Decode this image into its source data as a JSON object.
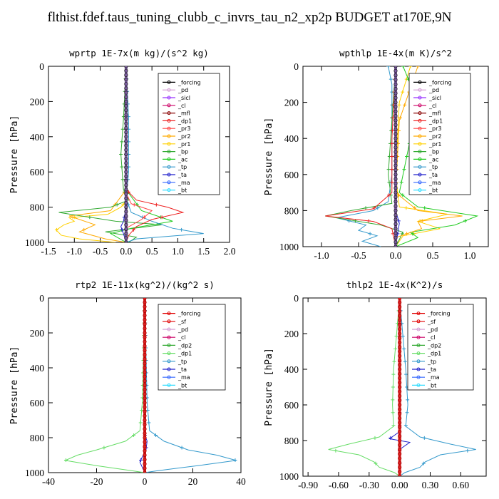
{
  "figure_title": "flthist.fdef.taus_tuning_clubb_c_invrs_tau_n2_xp2p  BUDGET at170E,9N",
  "colors": {
    "forcing": "#000000",
    "forcing_red": "#e00000",
    "pd": "#d49cd4",
    "sicl": "#9933ff",
    "cl": "#cc0066",
    "mfl": "#880000",
    "dp1": "#ee2222",
    "pr3": "#ff4444",
    "pr2": "#ffaa00",
    "pr1": "#ffd000",
    "bp": "#33aa33",
    "ac": "#22cc22",
    "tp": "#3399cc",
    "ta": "#2222cc",
    "ma": "#3366ff",
    "bt": "#33ddff",
    "sf": "#e00000",
    "dp2": "#33aa33",
    "dp1_green": "#66dd66"
  },
  "chart_data": [
    {
      "type": "line",
      "title": "wprtp  1E-7x(m kg)/(s^2 kg)",
      "ylabel": "Pressure [hPa]",
      "xlim": [
        -1.5,
        2.0
      ],
      "ylim": [
        1000,
        0
      ],
      "xticks": [
        "-1.5",
        "-1.0",
        "-0.5",
        "0.0",
        "0.5",
        "1.0",
        "1.5",
        "2.0"
      ],
      "yticks": [
        "0",
        "200",
        "400",
        "600",
        "800",
        "1000"
      ],
      "legend": [
        "_forcing",
        "_pd",
        "_sicl",
        "_cl",
        "_mfl",
        "_dp1",
        "_pr3",
        "_pr2",
        "_pr1",
        "_bp",
        "_ac",
        "_tp",
        "_ta",
        "_ma",
        "_bt"
      ],
      "series": [
        {
          "name": "_pr1",
          "color": "pr1",
          "points": [
            [
              0,
              0
            ],
            [
              0,
              400
            ],
            [
              0,
              700
            ],
            [
              0.02,
              760
            ],
            [
              -0.1,
              800
            ],
            [
              -0.35,
              840
            ],
            [
              -1.1,
              860
            ],
            [
              -1.0,
              880
            ],
            [
              -1.2,
              900
            ],
            [
              -1.35,
              930
            ],
            [
              -1.25,
              960
            ],
            [
              -0.9,
              980
            ],
            [
              -0.2,
              1000
            ]
          ]
        },
        {
          "name": "_pr2",
          "color": "pr2",
          "points": [
            [
              0,
              0
            ],
            [
              0,
              700
            ],
            [
              -0.3,
              820
            ],
            [
              -1.1,
              850
            ],
            [
              -0.6,
              900
            ],
            [
              -0.9,
              940
            ],
            [
              -0.4,
              980
            ],
            [
              0,
              1000
            ]
          ]
        },
        {
          "name": "_bp",
          "color": "bp",
          "points": [
            [
              0,
              0
            ],
            [
              -0.05,
              300
            ],
            [
              -0.1,
              500
            ],
            [
              -0.05,
              700
            ],
            [
              0.05,
              760
            ],
            [
              -0.3,
              800
            ],
            [
              -1.3,
              830
            ],
            [
              -0.2,
              880
            ],
            [
              0.7,
              900
            ],
            [
              -0.4,
              940
            ],
            [
              0.2,
              970
            ],
            [
              0.05,
              1000
            ]
          ]
        },
        {
          "name": "_ac",
          "color": "ac",
          "points": [
            [
              0,
              0
            ],
            [
              0,
              300
            ],
            [
              0,
              700
            ],
            [
              0.3,
              820
            ],
            [
              0.9,
              880
            ],
            [
              0.1,
              920
            ],
            [
              -0.3,
              950
            ],
            [
              0,
              1000
            ]
          ]
        },
        {
          "name": "_tp",
          "color": "tp",
          "points": [
            [
              0,
              0
            ],
            [
              0.05,
              300
            ],
            [
              0.05,
              600
            ],
            [
              0,
              750
            ],
            [
              0.1,
              830
            ],
            [
              0.5,
              880
            ],
            [
              0.9,
              920
            ],
            [
              1.5,
              950
            ],
            [
              0.2,
              980
            ],
            [
              0,
              1000
            ]
          ]
        },
        {
          "name": "_dp1",
          "color": "dp1",
          "points": [
            [
              0,
              0
            ],
            [
              0,
              700
            ],
            [
              0.2,
              760
            ],
            [
              0.8,
              800
            ],
            [
              1.1,
              830
            ],
            [
              0.5,
              870
            ],
            [
              0.2,
              910
            ],
            [
              0.05,
              960
            ],
            [
              0,
              1000
            ]
          ]
        },
        {
          "name": "_pr3",
          "color": "pr3",
          "points": [
            [
              0,
              0
            ],
            [
              0,
              720
            ],
            [
              0.1,
              780
            ],
            [
              0.5,
              820
            ],
            [
              0.3,
              870
            ],
            [
              0,
              920
            ],
            [
              0,
              1000
            ]
          ]
        },
        {
          "name": "_ta",
          "color": "ta",
          "points": [
            [
              0,
              0
            ],
            [
              0,
              800
            ],
            [
              -0.05,
              880
            ],
            [
              -0.1,
              910
            ],
            [
              -0.05,
              950
            ],
            [
              0,
              1000
            ]
          ]
        },
        {
          "name": "_forcing",
          "color": "forcing",
          "points": [
            [
              0,
              0
            ],
            [
              0,
              1000
            ]
          ]
        }
      ]
    },
    {
      "type": "line",
      "title": "wpthlp  1E-4x(m K)/s^2",
      "ylabel": "Pressure [hPa]",
      "xlim": [
        -1.25,
        1.25
      ],
      "ylim": [
        1000,
        0
      ],
      "xticks": [
        "-1.0",
        "-0.5",
        "0.0",
        "0.5",
        "1.0"
      ],
      "yticks": [
        "0",
        "200",
        "400",
        "600",
        "800",
        "1000"
      ],
      "legend": [
        "_forcing",
        "_pd",
        "_sicl",
        "_cl",
        "_mfl",
        "_dp1",
        "_pr3",
        "_pr2",
        "_pr1",
        "_bp",
        "_ac",
        "_tp",
        "_ta",
        "_ma",
        "_bt"
      ],
      "series": [
        {
          "name": "_tp",
          "color": "tp",
          "points": [
            [
              -0.1,
              0
            ],
            [
              -0.05,
              100
            ],
            [
              -0.05,
              300
            ],
            [
              -0.05,
              600
            ],
            [
              -0.1,
              750
            ],
            [
              -0.3,
              800
            ],
            [
              -0.8,
              840
            ],
            [
              -0.4,
              880
            ],
            [
              -0.5,
              910
            ],
            [
              -0.25,
              940
            ],
            [
              -0.45,
              970
            ],
            [
              -0.2,
              1000
            ]
          ]
        },
        {
          "name": "_pr1",
          "color": "pr1",
          "points": [
            [
              0.2,
              0
            ],
            [
              0.05,
              200
            ],
            [
              0,
              600
            ],
            [
              0.05,
              780
            ],
            [
              0.7,
              820
            ],
            [
              0.3,
              860
            ],
            [
              0.6,
              900
            ],
            [
              0.1,
              940
            ],
            [
              0,
              1000
            ]
          ]
        },
        {
          "name": "_ac",
          "color": "ac",
          "points": [
            [
              0.1,
              0
            ],
            [
              0.2,
              100
            ],
            [
              0.3,
              200
            ],
            [
              0.25,
              300
            ],
            [
              0.15,
              500
            ],
            [
              0.05,
              700
            ],
            [
              0.3,
              780
            ],
            [
              1.1,
              830
            ],
            [
              0.8,
              880
            ],
            [
              0.2,
              920
            ],
            [
              0.3,
              950
            ],
            [
              0,
              1000
            ]
          ]
        },
        {
          "name": "_bp",
          "color": "bp",
          "points": [
            [
              0,
              0
            ],
            [
              -0.05,
              300
            ],
            [
              -0.1,
              600
            ],
            [
              -0.05,
              760
            ],
            [
              -0.6,
              800
            ],
            [
              -0.95,
              830
            ],
            [
              -0.2,
              880
            ],
            [
              0.1,
              920
            ],
            [
              0.05,
              960
            ],
            [
              0,
              1000
            ]
          ]
        },
        {
          "name": "_dp1",
          "color": "dp1",
          "points": [
            [
              0,
              0
            ],
            [
              -0.05,
              400
            ],
            [
              -0.05,
              700
            ],
            [
              -0.3,
              790
            ],
            [
              -0.95,
              830
            ],
            [
              -0.3,
              860
            ],
            [
              -0.05,
              900
            ],
            [
              0,
              1000
            ]
          ]
        },
        {
          "name": "_pr2",
          "color": "pr2",
          "points": [
            [
              0.3,
              0
            ],
            [
              0.05,
              300
            ],
            [
              0,
              700
            ],
            [
              0.3,
              800
            ],
            [
              0.9,
              830
            ],
            [
              0.3,
              860
            ],
            [
              0.35,
              900
            ],
            [
              0,
              950
            ],
            [
              0,
              1000
            ]
          ]
        },
        {
          "name": "_ta",
          "color": "ta",
          "points": [
            [
              0,
              0
            ],
            [
              0,
              800
            ],
            [
              0.05,
              870
            ],
            [
              0,
              1000
            ]
          ]
        },
        {
          "name": "_pd",
          "color": "pd",
          "points": [
            [
              0,
              0
            ],
            [
              0,
              1000
            ]
          ]
        }
      ]
    },
    {
      "type": "line",
      "title": "rtp2  1E-11x(kg^2)/(kg^2 s)",
      "ylabel": "Pressure [hPa]",
      "xlim": [
        -40,
        40
      ],
      "ylim": [
        1000,
        0
      ],
      "xticks": [
        "-40",
        "-20",
        "0",
        "20",
        "40"
      ],
      "yticks": [
        "0",
        "200",
        "400",
        "600",
        "800",
        "1000"
      ],
      "legend": [
        "_forcing",
        "_sf",
        "_pd",
        "_cl",
        "_dp2",
        "_dp1",
        "_tp",
        "_ta",
        "_ma",
        "_bt"
      ],
      "series": [
        {
          "name": "_dp1",
          "color": "dp1_green",
          "points": [
            [
              0,
              0
            ],
            [
              -0.5,
              300
            ],
            [
              -1,
              600
            ],
            [
              -2,
              760
            ],
            [
              -8,
              820
            ],
            [
              -20,
              870
            ],
            [
              -28,
              900
            ],
            [
              -33,
              930
            ],
            [
              -20,
              960
            ],
            [
              -5,
              990
            ],
            [
              0,
              1000
            ]
          ]
        },
        {
          "name": "_tp",
          "color": "tp",
          "points": [
            [
              0,
              0
            ],
            [
              0.5,
              300
            ],
            [
              1,
              600
            ],
            [
              2,
              760
            ],
            [
              8,
              820
            ],
            [
              18,
              870
            ],
            [
              30,
              900
            ],
            [
              38,
              930
            ],
            [
              22,
              960
            ],
            [
              5,
              990
            ],
            [
              0,
              1000
            ]
          ]
        },
        {
          "name": "_ta",
          "color": "ta",
          "points": [
            [
              0,
              0
            ],
            [
              0,
              780
            ],
            [
              1,
              820
            ],
            [
              0.5,
              870
            ],
            [
              -1,
              910
            ],
            [
              -2,
              940
            ],
            [
              0,
              1000
            ]
          ]
        },
        {
          "name": "_forcing",
          "color": "forcing_red",
          "points": [
            [
              0,
              0
            ],
            [
              0,
              1000
            ]
          ]
        }
      ]
    },
    {
      "type": "line",
      "title": "thlp2  1E-4x(K^2)/s",
      "ylabel": "Pressure [hPa]",
      "xlim": [
        -0.95,
        0.85
      ],
      "ylim": [
        1000,
        0
      ],
      "xticks": [
        "-0.90",
        "-0.60",
        "-0.30",
        "0.00",
        "0.30",
        "0.60"
      ],
      "yticks": [
        "0",
        "200",
        "400",
        "600",
        "800",
        "1000"
      ],
      "legend": [
        "_forcing",
        "_sf",
        "_pd",
        "_cl",
        "_dp2",
        "_dp1",
        "_tp",
        "_ta",
        "_ma",
        "_bt"
      ],
      "series": [
        {
          "name": "_dp1",
          "color": "dp1_green",
          "points": [
            [
              0,
              0
            ],
            [
              -0.03,
              200
            ],
            [
              -0.06,
              400
            ],
            [
              -0.07,
              600
            ],
            [
              -0.06,
              720
            ],
            [
              -0.2,
              780
            ],
            [
              -0.5,
              820
            ],
            [
              -0.7,
              850
            ],
            [
              -0.4,
              880
            ],
            [
              -0.25,
              920
            ],
            [
              -0.2,
              950
            ],
            [
              -0.05,
              980
            ],
            [
              0,
              1000
            ]
          ]
        },
        {
          "name": "_tp",
          "color": "tp",
          "points": [
            [
              0,
              0
            ],
            [
              0.03,
              200
            ],
            [
              0.06,
              400
            ],
            [
              0.08,
              600
            ],
            [
              0.06,
              720
            ],
            [
              0.2,
              780
            ],
            [
              0.5,
              820
            ],
            [
              0.75,
              850
            ],
            [
              0.4,
              880
            ],
            [
              0.25,
              920
            ],
            [
              0.2,
              950
            ],
            [
              0.05,
              980
            ],
            [
              0,
              1000
            ]
          ]
        },
        {
          "name": "_ta",
          "color": "ta",
          "points": [
            [
              0,
              0
            ],
            [
              0,
              750
            ],
            [
              -0.1,
              790
            ],
            [
              0.1,
              810
            ],
            [
              0,
              850
            ],
            [
              0,
              1000
            ]
          ]
        },
        {
          "name": "_forcing",
          "color": "forcing_red",
          "points": [
            [
              0,
              0
            ],
            [
              0,
              1000
            ]
          ]
        }
      ]
    }
  ]
}
